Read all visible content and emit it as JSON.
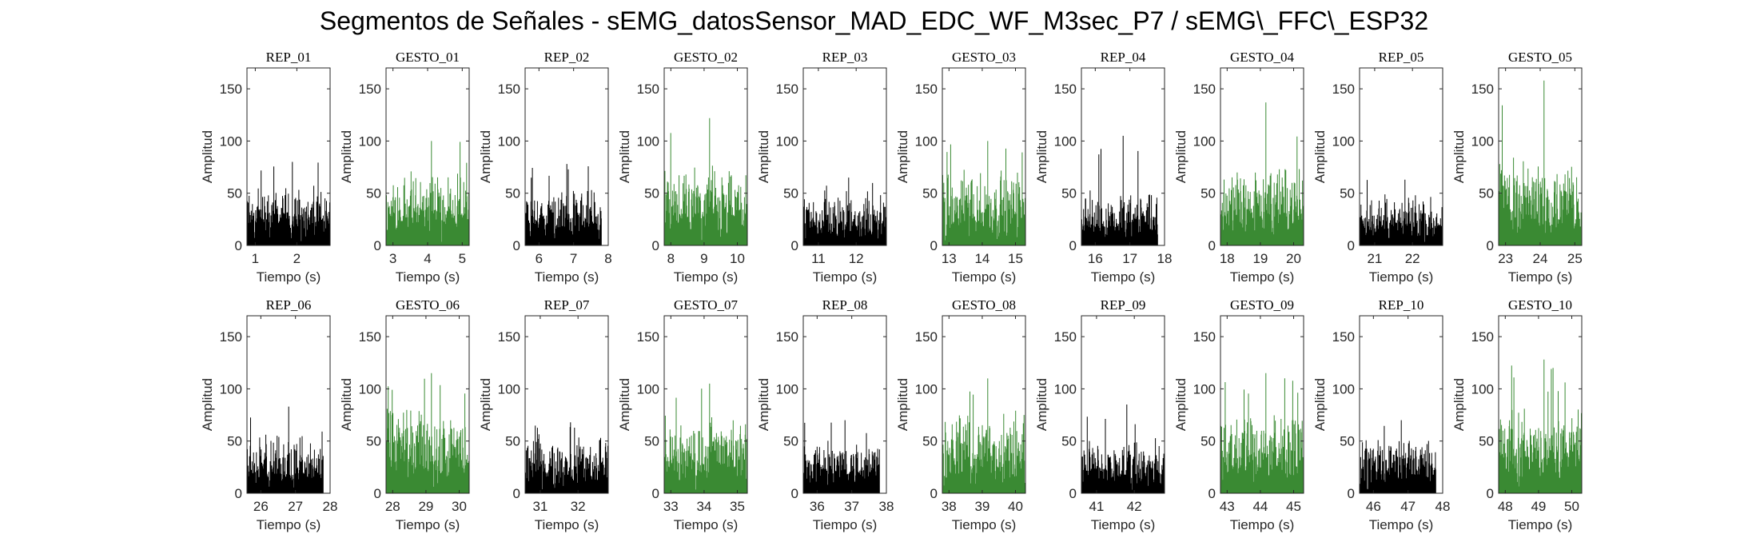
{
  "figure": {
    "title": "Segmentos de Señales - sEMG_datosSensor_MAD_EDC_WF_M3sec_P7 / sEMG\\_FFC\\_ESP32"
  },
  "colors": {
    "rep": "#000000",
    "gesto": "#3a8a33",
    "axis": "#262626"
  },
  "chart_data": [
    {
      "type": "area",
      "title": "REP_01",
      "xlabel": "Tiempo (s)",
      "ylabel": "Amplitud",
      "xlim": [
        0.8,
        2.8
      ],
      "ylim": [
        0,
        170
      ],
      "xticks": [
        1,
        2
      ],
      "yticks": [
        0,
        50,
        100,
        150
      ],
      "data_x_range": [
        0.8,
        2.8
      ],
      "color": "rep",
      "baseline": 25,
      "spread": 35,
      "peak": 80
    },
    {
      "type": "area",
      "title": "GESTO_01",
      "xlabel": "Tiempo (s)",
      "ylabel": "Amplitud",
      "xlim": [
        2.8,
        5.2
      ],
      "ylim": [
        0,
        170
      ],
      "xticks": [
        3,
        4,
        5
      ],
      "yticks": [
        0,
        50,
        100,
        150
      ],
      "data_x_range": [
        2.8,
        5.2
      ],
      "color": "gesto",
      "baseline": 30,
      "spread": 45,
      "peak": 100
    },
    {
      "type": "area",
      "title": "REP_02",
      "xlabel": "Tiempo (s)",
      "ylabel": "Amplitud",
      "xlim": [
        5.6,
        8
      ],
      "ylim": [
        0,
        170
      ],
      "xticks": [
        6,
        7,
        8
      ],
      "yticks": [
        0,
        50,
        100,
        150
      ],
      "data_x_range": [
        5.6,
        7.8
      ],
      "color": "rep",
      "baseline": 22,
      "spread": 35,
      "peak": 78
    },
    {
      "type": "area",
      "title": "GESTO_02",
      "xlabel": "Tiempo (s)",
      "ylabel": "Amplitud",
      "xlim": [
        7.8,
        10.3
      ],
      "ylim": [
        0,
        170
      ],
      "xticks": [
        8,
        9,
        10
      ],
      "yticks": [
        0,
        50,
        100,
        150
      ],
      "data_x_range": [
        7.8,
        10.3
      ],
      "color": "gesto",
      "baseline": 30,
      "spread": 50,
      "peak": 122
    },
    {
      "type": "area",
      "title": "REP_03",
      "xlabel": "Tiempo (s)",
      "ylabel": "Amplitud",
      "xlim": [
        10.6,
        12.8
      ],
      "ylim": [
        0,
        170
      ],
      "xticks": [
        11,
        12
      ],
      "yticks": [
        0,
        50,
        100,
        150
      ],
      "data_x_range": [
        10.6,
        12.8
      ],
      "color": "rep",
      "baseline": 22,
      "spread": 30,
      "peak": 65
    },
    {
      "type": "area",
      "title": "GESTO_03",
      "xlabel": "Tiempo (s)",
      "ylabel": "Amplitud",
      "xlim": [
        12.8,
        15.3
      ],
      "ylim": [
        0,
        170
      ],
      "xticks": [
        13,
        14,
        15
      ],
      "yticks": [
        0,
        50,
        100,
        150
      ],
      "data_x_range": [
        12.8,
        15.3
      ],
      "color": "gesto",
      "baseline": 28,
      "spread": 50,
      "peak": 100
    },
    {
      "type": "area",
      "title": "REP_04",
      "xlabel": "Tiempo (s)",
      "ylabel": "Amplitud",
      "xlim": [
        15.6,
        18
      ],
      "ylim": [
        0,
        170
      ],
      "xticks": [
        16,
        17,
        18
      ],
      "yticks": [
        0,
        50,
        100,
        150
      ],
      "data_x_range": [
        15.6,
        17.8
      ],
      "color": "rep",
      "baseline": 20,
      "spread": 35,
      "peak": 105
    },
    {
      "type": "area",
      "title": "GESTO_04",
      "xlabel": "Tiempo (s)",
      "ylabel": "Amplitud",
      "xlim": [
        17.8,
        20.3
      ],
      "ylim": [
        0,
        170
      ],
      "xticks": [
        18,
        19,
        20
      ],
      "yticks": [
        0,
        50,
        100,
        150
      ],
      "data_x_range": [
        17.8,
        20.3
      ],
      "color": "gesto",
      "baseline": 30,
      "spread": 50,
      "peak": 137
    },
    {
      "type": "area",
      "title": "REP_05",
      "xlabel": "Tiempo (s)",
      "ylabel": "Amplitud",
      "xlim": [
        20.6,
        22.8
      ],
      "ylim": [
        0,
        170
      ],
      "xticks": [
        21,
        22
      ],
      "yticks": [
        0,
        50,
        100,
        150
      ],
      "data_x_range": [
        20.6,
        22.8
      ],
      "color": "rep",
      "baseline": 20,
      "spread": 30,
      "peak": 63
    },
    {
      "type": "area",
      "title": "GESTO_05",
      "xlabel": "Tiempo (s)",
      "ylabel": "Amplitud",
      "xlim": [
        22.8,
        25.2
      ],
      "ylim": [
        0,
        170
      ],
      "xticks": [
        23,
        24,
        25
      ],
      "yticks": [
        0,
        50,
        100,
        150
      ],
      "data_x_range": [
        22.8,
        25.2
      ],
      "color": "gesto",
      "baseline": 32,
      "spread": 55,
      "peak": 158
    },
    {
      "type": "area",
      "title": "REP_06",
      "xlabel": "Tiempo (s)",
      "ylabel": "Amplitud",
      "xlim": [
        25.6,
        28
      ],
      "ylim": [
        0,
        170
      ],
      "xticks": [
        26,
        27,
        28
      ],
      "yticks": [
        0,
        50,
        100,
        150
      ],
      "data_x_range": [
        25.6,
        27.8
      ],
      "color": "rep",
      "baseline": 25,
      "spread": 35,
      "peak": 83
    },
    {
      "type": "area",
      "title": "GESTO_06",
      "xlabel": "Tiempo (s)",
      "ylabel": "Amplitud",
      "xlim": [
        27.8,
        30.3
      ],
      "ylim": [
        0,
        170
      ],
      "xticks": [
        28,
        29,
        30
      ],
      "yticks": [
        0,
        50,
        100,
        150
      ],
      "data_x_range": [
        27.8,
        30.3
      ],
      "color": "gesto",
      "baseline": 32,
      "spread": 55,
      "peak": 115
    },
    {
      "type": "area",
      "title": "REP_07",
      "xlabel": "Tiempo (s)",
      "ylabel": "Amplitud",
      "xlim": [
        30.6,
        32.8
      ],
      "ylim": [
        0,
        170
      ],
      "xticks": [
        31,
        32
      ],
      "yticks": [
        0,
        50,
        100,
        150
      ],
      "data_x_range": [
        30.6,
        32.8
      ],
      "color": "rep",
      "baseline": 22,
      "spread": 35,
      "peak": 68
    },
    {
      "type": "area",
      "title": "GESTO_07",
      "xlabel": "Tiempo (s)",
      "ylabel": "Amplitud",
      "xlim": [
        32.8,
        35.3
      ],
      "ylim": [
        0,
        170
      ],
      "xticks": [
        33,
        34,
        35
      ],
      "yticks": [
        0,
        50,
        100,
        150
      ],
      "data_x_range": [
        32.8,
        35.3
      ],
      "color": "gesto",
      "baseline": 30,
      "spread": 50,
      "peak": 105
    },
    {
      "type": "area",
      "title": "REP_08",
      "xlabel": "Tiempo (s)",
      "ylabel": "Amplitud",
      "xlim": [
        35.6,
        38
      ],
      "ylim": [
        0,
        170
      ],
      "xticks": [
        36,
        37,
        38
      ],
      "yticks": [
        0,
        50,
        100,
        150
      ],
      "data_x_range": [
        35.6,
        37.8
      ],
      "color": "rep",
      "baseline": 22,
      "spread": 35,
      "peak": 70
    },
    {
      "type": "area",
      "title": "GESTO_08",
      "xlabel": "Tiempo (s)",
      "ylabel": "Amplitud",
      "xlim": [
        37.8,
        40.3
      ],
      "ylim": [
        0,
        170
      ],
      "xticks": [
        38,
        39,
        40
      ],
      "yticks": [
        0,
        50,
        100,
        150
      ],
      "data_x_range": [
        37.8,
        40.3
      ],
      "color": "gesto",
      "baseline": 30,
      "spread": 50,
      "peak": 110
    },
    {
      "type": "area",
      "title": "REP_09",
      "xlabel": "Tiempo (s)",
      "ylabel": "Amplitud",
      "xlim": [
        40.6,
        42.8
      ],
      "ylim": [
        0,
        170
      ],
      "xticks": [
        41,
        42
      ],
      "yticks": [
        0,
        50,
        100,
        150
      ],
      "data_x_range": [
        40.6,
        42.8
      ],
      "color": "rep",
      "baseline": 22,
      "spread": 35,
      "peak": 85
    },
    {
      "type": "area",
      "title": "GESTO_09",
      "xlabel": "Tiempo (s)",
      "ylabel": "Amplitud",
      "xlim": [
        42.8,
        45.3
      ],
      "ylim": [
        0,
        170
      ],
      "xticks": [
        43,
        44,
        45
      ],
      "yticks": [
        0,
        50,
        100,
        150
      ],
      "data_x_range": [
        42.8,
        45.3
      ],
      "color": "gesto",
      "baseline": 30,
      "spread": 50,
      "peak": 115
    },
    {
      "type": "area",
      "title": "REP_10",
      "xlabel": "Tiempo (s)",
      "ylabel": "Amplitud",
      "xlim": [
        45.6,
        48
      ],
      "ylim": [
        0,
        170
      ],
      "xticks": [
        46,
        47,
        48
      ],
      "yticks": [
        0,
        50,
        100,
        150
      ],
      "data_x_range": [
        45.6,
        47.8
      ],
      "color": "rep",
      "baseline": 22,
      "spread": 35,
      "peak": 70
    },
    {
      "type": "area",
      "title": "GESTO_10",
      "xlabel": "Tiempo (s)",
      "ylabel": "Amplitud",
      "xlim": [
        47.8,
        50.3
      ],
      "ylim": [
        0,
        170
      ],
      "xticks": [
        48,
        49,
        50
      ],
      "yticks": [
        0,
        50,
        100,
        150
      ],
      "data_x_range": [
        47.8,
        50.3
      ],
      "color": "gesto",
      "baseline": 32,
      "spread": 55,
      "peak": 128
    }
  ]
}
